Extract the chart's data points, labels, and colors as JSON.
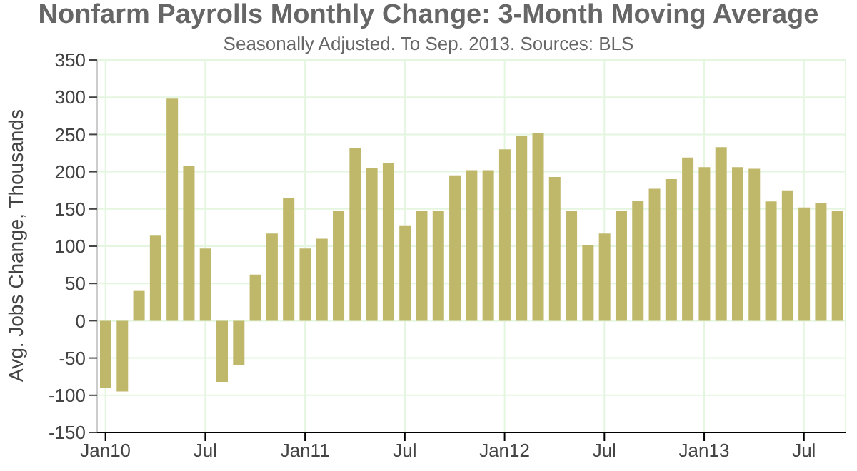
{
  "chart_data": {
    "type": "bar",
    "title": "Nonfarm Payrolls Monthly Change: 3-Month Moving Average",
    "subtitle": "Seasonally Adjusted. To Sep. 2013. Sources: BLS",
    "ylabel": "Avg. Jobs Change, Thousands",
    "categories": [
      "Jan10",
      null,
      null,
      null,
      null,
      null,
      "Jul",
      null,
      null,
      null,
      null,
      null,
      "Jan11",
      null,
      null,
      null,
      null,
      null,
      "Jul",
      null,
      null,
      null,
      null,
      null,
      "Jan12",
      null,
      null,
      null,
      null,
      null,
      "Jul",
      null,
      null,
      null,
      null,
      null,
      "Jan13",
      null,
      null,
      null,
      null,
      null,
      "Jul",
      null,
      null
    ],
    "values": [
      -90,
      -95,
      40,
      115,
      298,
      208,
      97,
      -82,
      -60,
      62,
      117,
      165,
      97,
      110,
      148,
      232,
      205,
      212,
      128,
      148,
      148,
      195,
      202,
      202,
      230,
      248,
      252,
      193,
      148,
      102,
      117,
      147,
      161,
      177,
      190,
      219,
      206,
      233,
      206,
      204,
      160,
      175,
      152,
      158,
      147
    ],
    "color": "#bfb86a",
    "ylim": [
      -150,
      350
    ],
    "yticks": [
      -150,
      -100,
      -50,
      0,
      50,
      100,
      150,
      200,
      250,
      300,
      350
    ],
    "grid": true
  }
}
